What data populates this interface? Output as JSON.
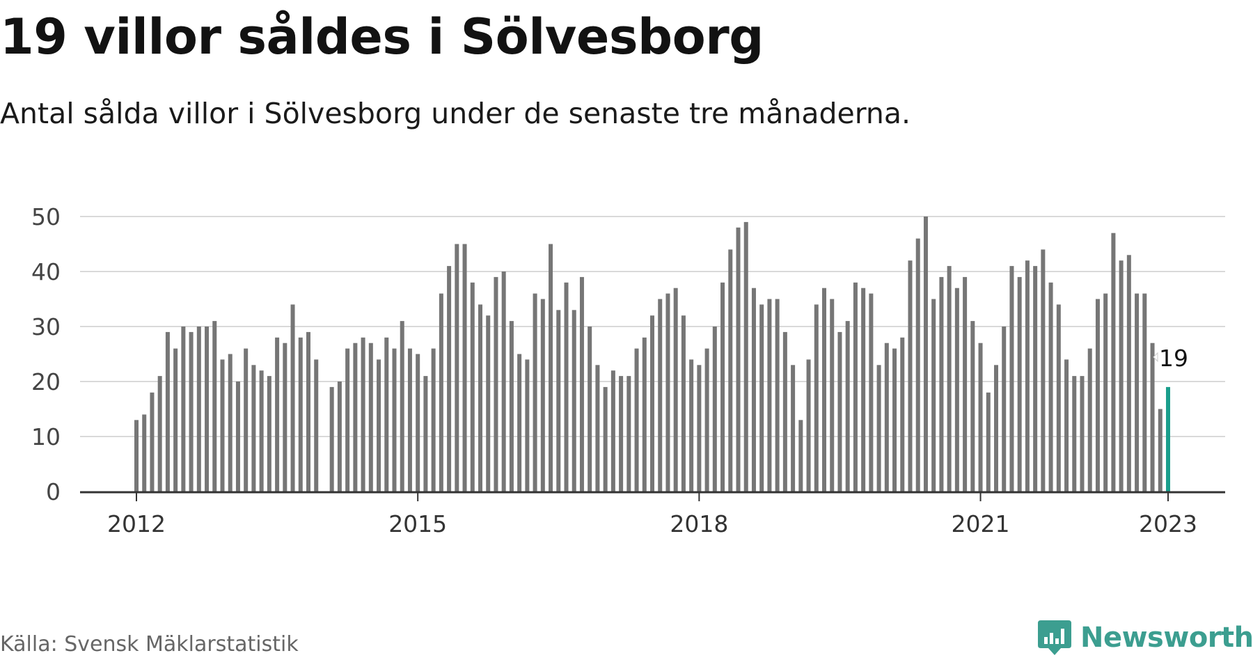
{
  "header": {
    "title": "19 villor såldes i Sölvesborg",
    "subtitle": "Antal sålda villor i Sölvesborg under de senaste tre månaderna."
  },
  "footer": {
    "source": "Källa: Svensk Mäklarstatistik",
    "brand": "Newsworthy"
  },
  "colors": {
    "bar": "#767676",
    "highlight": "#1a9e8c",
    "grid": "#d9d9d9",
    "axis": "#333333",
    "brand": "#3c9e90"
  },
  "icons": {
    "brand_logo": "bar-chart-speech-bubble-icon"
  },
  "chart_data": {
    "type": "bar",
    "title": "",
    "xlabel": "",
    "ylabel": "",
    "ylim": [
      0,
      50
    ],
    "yticks": [
      0,
      10,
      20,
      30,
      40,
      50
    ],
    "xticks": [
      "2012",
      "2015",
      "2018",
      "2021",
      "2023"
    ],
    "grid": true,
    "x_start": "2012-01",
    "x_end": "2023-01",
    "frequency": "monthly",
    "values": [
      13,
      14,
      18,
      21,
      29,
      26,
      30,
      29,
      30,
      30,
      31,
      24,
      25,
      20,
      26,
      23,
      22,
      21,
      28,
      27,
      34,
      28,
      29,
      24,
      null,
      19,
      20,
      26,
      27,
      28,
      27,
      24,
      28,
      26,
      31,
      26,
      25,
      21,
      26,
      36,
      41,
      45,
      45,
      38,
      34,
      32,
      39,
      40,
      31,
      25,
      24,
      36,
      35,
      45,
      33,
      38,
      33,
      39,
      30,
      23,
      19,
      22,
      21,
      21,
      26,
      28,
      32,
      35,
      36,
      37,
      32,
      24,
      23,
      26,
      30,
      38,
      44,
      48,
      49,
      37,
      34,
      35,
      35,
      29,
      23,
      13,
      24,
      34,
      37,
      35,
      29,
      31,
      38,
      37,
      36,
      23,
      27,
      26,
      28,
      42,
      46,
      50,
      35,
      39,
      41,
      37,
      39,
      31,
      27,
      18,
      23,
      30,
      41,
      39,
      42,
      41,
      44,
      38,
      34,
      24,
      21,
      21,
      26,
      35,
      36,
      47,
      42,
      43,
      36,
      36,
      27,
      15,
      19
    ],
    "highlight": {
      "label": "19",
      "value": 19
    }
  }
}
